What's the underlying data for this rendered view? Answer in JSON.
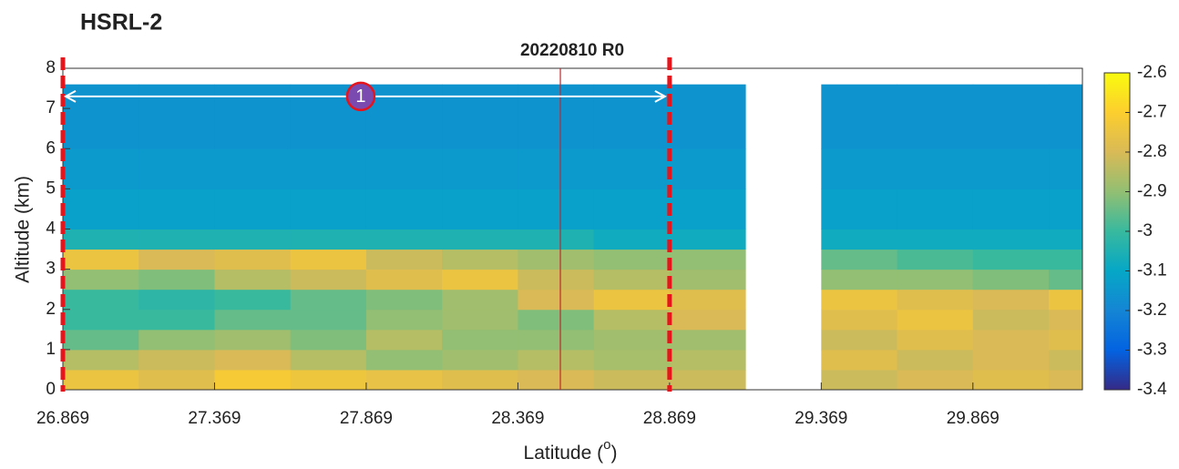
{
  "chart_data": {
    "type": "heatmap",
    "panel_label": "HSRL-2",
    "title": "20220810 R0",
    "ylabel": "Altitude (km)",
    "xlabel": [
      "Latitude (",
      "o",
      ")"
    ],
    "xlim": [
      26.869,
      30.23
    ],
    "ylim": [
      0,
      8
    ],
    "xticks": [
      26.869,
      27.369,
      27.869,
      28.369,
      28.869,
      29.369,
      29.869
    ],
    "yticks": [
      0,
      1,
      2,
      3,
      4,
      5,
      6,
      7,
      8
    ],
    "x_edges": [
      26.869,
      27.119,
      27.369,
      27.619,
      27.869,
      28.119,
      28.369,
      28.619,
      28.869,
      29.119,
      29.369,
      29.619,
      29.869,
      30.119,
      30.23
    ],
    "y_edges": [
      0,
      0.5,
      1,
      1.5,
      2,
      2.5,
      3,
      3.5,
      4,
      5,
      6,
      7.6
    ],
    "z": [
      [
        -2.75,
        -2.78,
        -2.72,
        -2.74,
        -2.76,
        -2.78,
        -2.8,
        -2.82,
        -2.82,
        null,
        -2.82,
        -2.8,
        -2.78,
        -2.8
      ],
      [
        -2.85,
        -2.82,
        -2.8,
        -2.85,
        -2.9,
        -2.88,
        -2.85,
        -2.87,
        -2.85,
        null,
        -2.78,
        -2.82,
        -2.8,
        -2.82
      ],
      [
        -2.95,
        -2.9,
        -2.88,
        -2.92,
        -2.85,
        -2.9,
        -2.9,
        -2.88,
        -2.88,
        null,
        -2.82,
        -2.78,
        -2.8,
        -2.78
      ],
      [
        -3.0,
        -3.0,
        -2.95,
        -2.95,
        -2.9,
        -2.88,
        -2.92,
        -2.85,
        -2.8,
        null,
        -2.78,
        -2.75,
        -2.82,
        -2.8
      ],
      [
        -3.0,
        -3.02,
        -3.0,
        -2.95,
        -2.92,
        -2.88,
        -2.8,
        -2.75,
        -2.78,
        null,
        -2.75,
        -2.78,
        -2.8,
        -2.75
      ],
      [
        -2.9,
        -2.92,
        -2.85,
        -2.82,
        -2.78,
        -2.75,
        -2.82,
        -2.85,
        -2.88,
        null,
        -2.9,
        -2.9,
        -2.92,
        -2.95
      ],
      [
        -2.75,
        -2.8,
        -2.78,
        -2.75,
        -2.82,
        -2.85,
        -2.88,
        -2.9,
        -2.9,
        null,
        -2.95,
        -2.98,
        -3.0,
        -3.0
      ],
      [
        -3.05,
        -3.05,
        -3.05,
        -3.05,
        -3.05,
        -3.05,
        -3.05,
        -3.08,
        -3.08,
        null,
        -3.08,
        -3.08,
        -3.08,
        -3.08
      ],
      [
        -3.12,
        -3.12,
        -3.12,
        -3.12,
        -3.12,
        -3.12,
        -3.12,
        -3.12,
        -3.12,
        null,
        -3.12,
        -3.12,
        -3.12,
        -3.12
      ],
      [
        -3.14,
        -3.14,
        -3.14,
        -3.14,
        -3.14,
        -3.14,
        -3.14,
        -3.14,
        -3.14,
        null,
        -3.14,
        -3.14,
        -3.14,
        -3.14
      ],
      [
        -3.16,
        -3.16,
        -3.16,
        -3.16,
        -3.16,
        -3.16,
        -3.16,
        -3.16,
        -3.16,
        null,
        -3.16,
        -3.16,
        -3.16,
        -3.16
      ]
    ],
    "clim": [
      -3.4,
      -2.6
    ],
    "cticks": [
      -3.4,
      -3.3,
      -3.2,
      -3.1,
      -3,
      -2.9,
      -2.8,
      -2.7,
      -2.6
    ],
    "colormap": [
      "#352a87",
      "#0363e1",
      "#1485d4",
      "#06a7c6",
      "#38b99e",
      "#92bf73",
      "#d9ba56",
      "#fcce2e",
      "#f9fb0e"
    ],
    "marker_lines": {
      "x": [
        26.869,
        28.869
      ],
      "color": "#e8141b"
    },
    "cursor_x": 28.509,
    "annotation": {
      "label": "1",
      "x": [
        26.869,
        28.869
      ],
      "y": 7.3
    }
  }
}
